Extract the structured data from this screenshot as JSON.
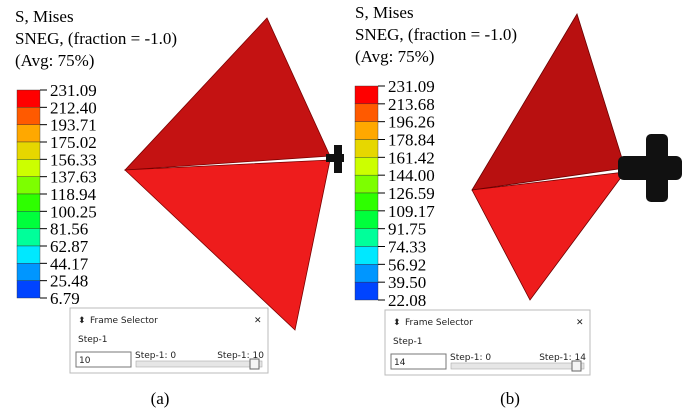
{
  "panels": [
    {
      "legend_title": [
        "S, Mises",
        "SNEG, (fraction = -1.0)",
        "(Avg: 75%)"
      ],
      "legend_labels": [
        "231.09",
        "212.40",
        "193.71",
        "175.02",
        "156.33",
        "137.63",
        "118.94",
        "100.25",
        "81.56",
        "62.87",
        "44.17",
        "25.48",
        "6.79"
      ],
      "frame_selector": {
        "title": "Frame Selector",
        "step": "Step-1",
        "frame": "10",
        "range_start": "Step-1: 0",
        "range_end": "Step-1: 10"
      },
      "caption": "(a)"
    },
    {
      "legend_title": [
        "S, Mises",
        "SNEG, (fraction = -1.0)",
        "(Avg: 75%)"
      ],
      "legend_labels": [
        "231.09",
        "213.68",
        "196.26",
        "178.84",
        "161.42",
        "144.00",
        "126.59",
        "109.17",
        "91.75",
        "74.33",
        "56.92",
        "39.50",
        "22.08"
      ],
      "frame_selector": {
        "title": "Frame Selector",
        "step": "Step-1",
        "frame": "14",
        "range_start": "Step-1: 0",
        "range_end": "Step-1: 14"
      },
      "caption": "(b)"
    }
  ],
  "legend_colors": [
    "#ff0000",
    "#ff5a00",
    "#ffa800",
    "#e6d700",
    "#ccff00",
    "#7dff00",
    "#2eff00",
    "#00ff3c",
    "#00ff9a",
    "#00e8ff",
    "#0096ff",
    "#0044ff"
  ]
}
